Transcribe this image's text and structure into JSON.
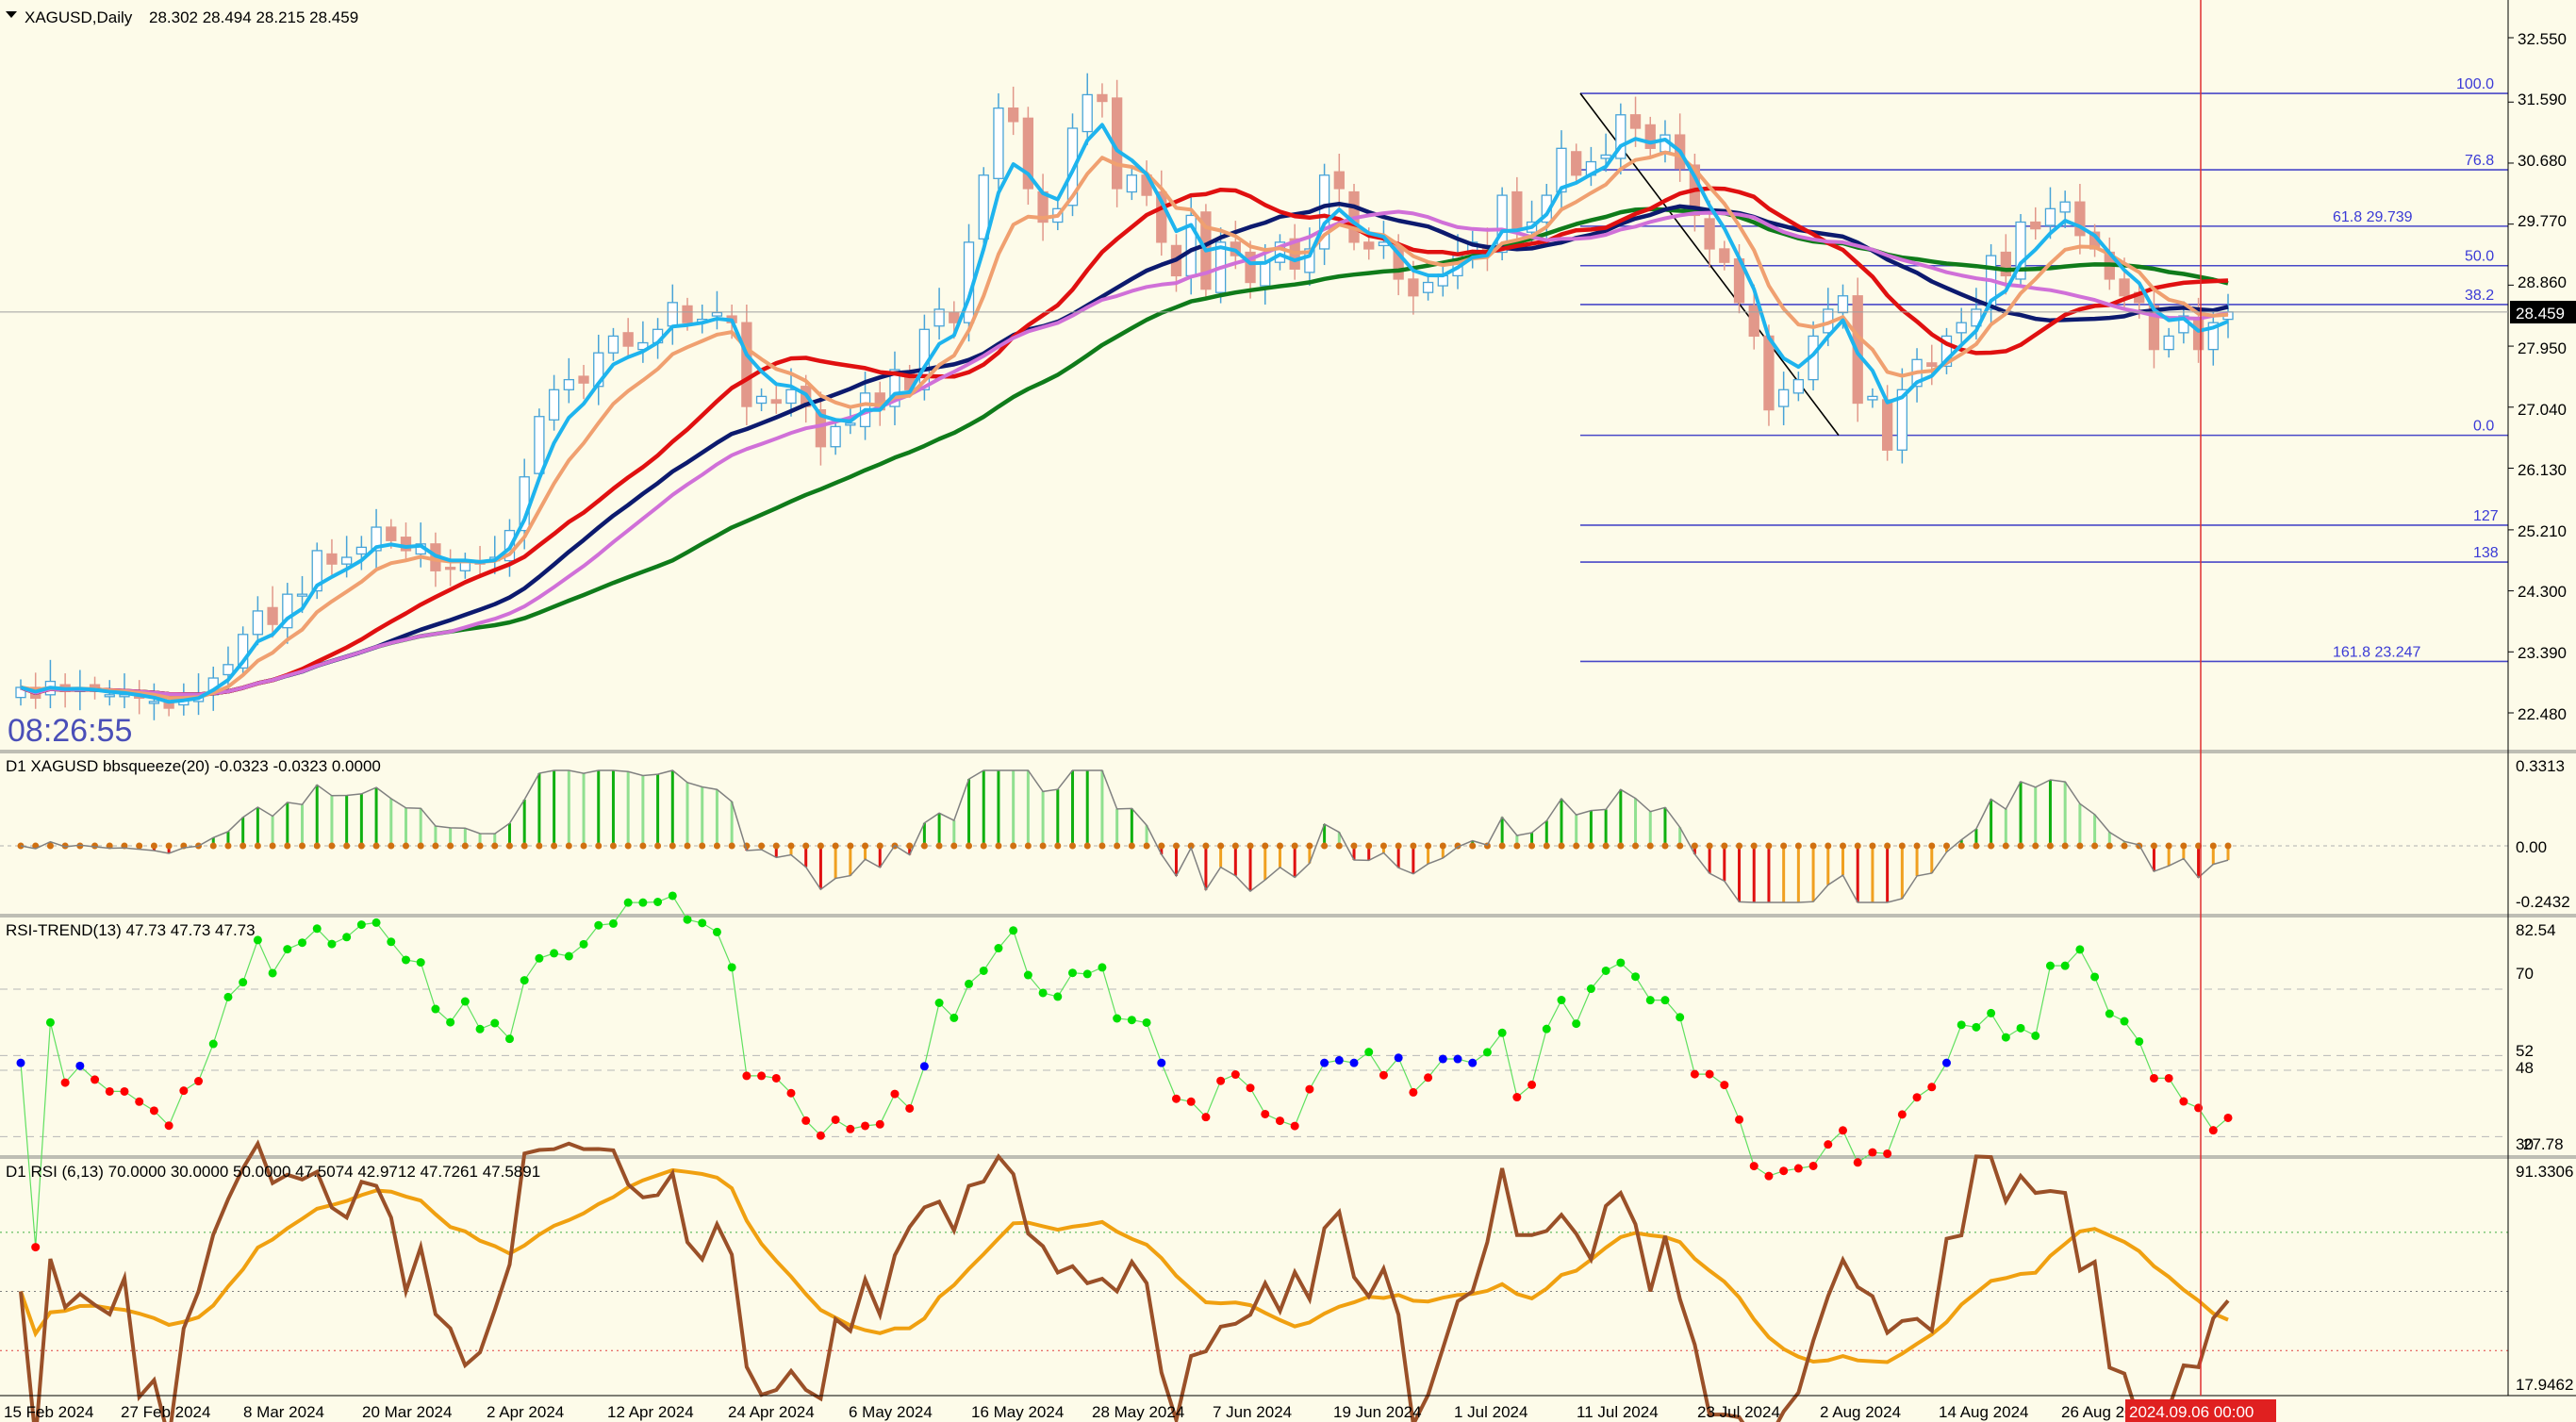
{
  "chart_data": {
    "type": "candlestick",
    "symbol_header": "XAGUSD,Daily",
    "ohlc_header": "28.302 28.494 28.215 28.459",
    "clock": "08:26:55",
    "current_price": "28.459",
    "price_ticks": [
      "32.550",
      "31.590",
      "30.680",
      "29.770",
      "28.860",
      "27.950",
      "27.040",
      "26.130",
      "25.210",
      "24.300",
      "23.390",
      "22.480"
    ],
    "date_ticks": [
      "15 Feb 2024",
      "27 Feb 2024",
      "8 Mar 2024",
      "20 Mar 2024",
      "2 Apr 2024",
      "12 Apr 2024",
      "24 Apr 2024",
      "6 May 2024",
      "16 May 2024",
      "28 May 2024",
      "7 Jun 2024",
      "19 Jun 2024",
      "1 Jul 2024",
      "11 Jul 2024",
      "23 Jul 2024",
      "2 Aug 2024",
      "14 Aug 2024",
      "26 Aug 2024"
    ],
    "cursor_date": "2024.09.06 00:00",
    "ylim": [
      22.0,
      33.2
    ],
    "close": [
      22.86,
      22.7,
      22.95,
      22.8,
      22.85,
      22.8,
      22.75,
      22.75,
      22.7,
      22.65,
      22.55,
      22.7,
      22.75,
      23.0,
      23.2,
      23.65,
      24.0,
      23.8,
      24.25,
      24.25,
      24.9,
      24.7,
      24.8,
      24.95,
      25.25,
      25.05,
      24.9,
      25.0,
      24.6,
      24.65,
      24.75,
      24.7,
      24.8,
      25.2,
      26.0,
      26.9,
      27.3,
      27.45,
      27.4,
      27.85,
      28.1,
      27.95,
      28.0,
      28.2,
      28.6,
      28.3,
      28.35,
      28.45,
      28.3,
      27.05,
      27.2,
      27.1,
      27.3,
      27.05,
      26.45,
      26.75,
      26.8,
      27.25,
      27.0,
      27.6,
      27.3,
      28.2,
      28.5,
      28.3,
      29.5,
      30.5,
      31.5,
      31.3,
      30.3,
      29.8,
      30.0,
      31.2,
      31.7,
      31.6,
      30.3,
      30.5,
      30.2,
      29.5,
      29.0,
      29.9,
      28.8,
      29.5,
      29.3,
      28.9,
      29.2,
      29.5,
      29.1,
      29.4,
      30.5,
      30.3,
      29.5,
      29.4,
      29.5,
      28.95,
      28.7,
      28.9,
      29.0,
      29.3,
      29.5,
      29.35,
      30.2,
      29.7,
      29.8,
      30.2,
      30.9,
      30.5,
      30.7,
      30.8,
      31.4,
      31.2,
      30.9,
      31.1,
      30.6,
      29.9,
      29.4,
      29.2,
      28.6,
      28.1,
      27.0,
      27.3,
      27.45,
      28.1,
      28.5,
      28.7,
      27.1,
      27.2,
      26.4,
      27.3,
      27.75,
      27.65,
      28.1,
      28.3,
      28.5,
      29.3,
      29.0,
      29.8,
      29.7,
      30.0,
      30.1,
      29.6,
      29.4,
      28.95,
      28.7,
      28.6,
      27.9,
      28.1,
      28.4,
      27.9,
      28.3,
      28.459
    ],
    "overlays": [
      "EMA fast (light blue)",
      "EMA medium (orange)",
      "SMA red",
      "SMA navy",
      "SMA green",
      "SMA violet"
    ],
    "fib_levels": [
      {
        "label": "100.0",
        "price": 31.72
      },
      {
        "label": "76.8",
        "price": 30.58
      },
      {
        "label": "61.8",
        "value": "29.739",
        "price": 29.739
      },
      {
        "label": "50.0",
        "price": 29.15
      },
      {
        "label": "38.2",
        "price": 28.57
      },
      {
        "label": "0.0",
        "price": 26.62
      },
      {
        "label": "127",
        "price": 25.28
      },
      {
        "label": "138",
        "price": 24.73
      },
      {
        "label": "161.8",
        "value": "23.247",
        "price": 23.247
      }
    ],
    "panels": [
      {
        "title": "D1 XAGUSD bbsqueeze(20) -0.0323 -0.0323 0.0000",
        "ticks": [
          "0.3313",
          "0.00",
          "-0.2432"
        ]
      },
      {
        "title": "RSI-TREND(13) 47.73 47.73 47.73",
        "ticks": [
          "82.54",
          "70",
          "52",
          "48",
          "30",
          "27.78"
        ]
      },
      {
        "title": "D1 RSI  (6,13) 70.0000 30.0000 50.0000 47.5074 42.9712 47.7261 47.5891",
        "ticks": [
          "91.3306",
          "17.9462"
        ]
      }
    ],
    "colors": {
      "bull": "#48a4d8",
      "bear": "#e2988a",
      "ema_fast": "#1eb4ee",
      "ema_mid": "#f0a070",
      "sma_red": "#e01010",
      "sma_navy": "#0c1a6e",
      "sma_green": "#0f7b1a",
      "sma_violet": "#d070d8",
      "fib": "#4848c8",
      "cursor": "#e03030",
      "squeeze_up": "#10c010",
      "squeeze_dn": "#e01010",
      "rsi_up": "#00e000",
      "rsi_mid": "#0000ff",
      "rsi_dn": "#ff0000",
      "rsi_line": "#9a5028",
      "rsi_signal": "#f0a010"
    }
  }
}
